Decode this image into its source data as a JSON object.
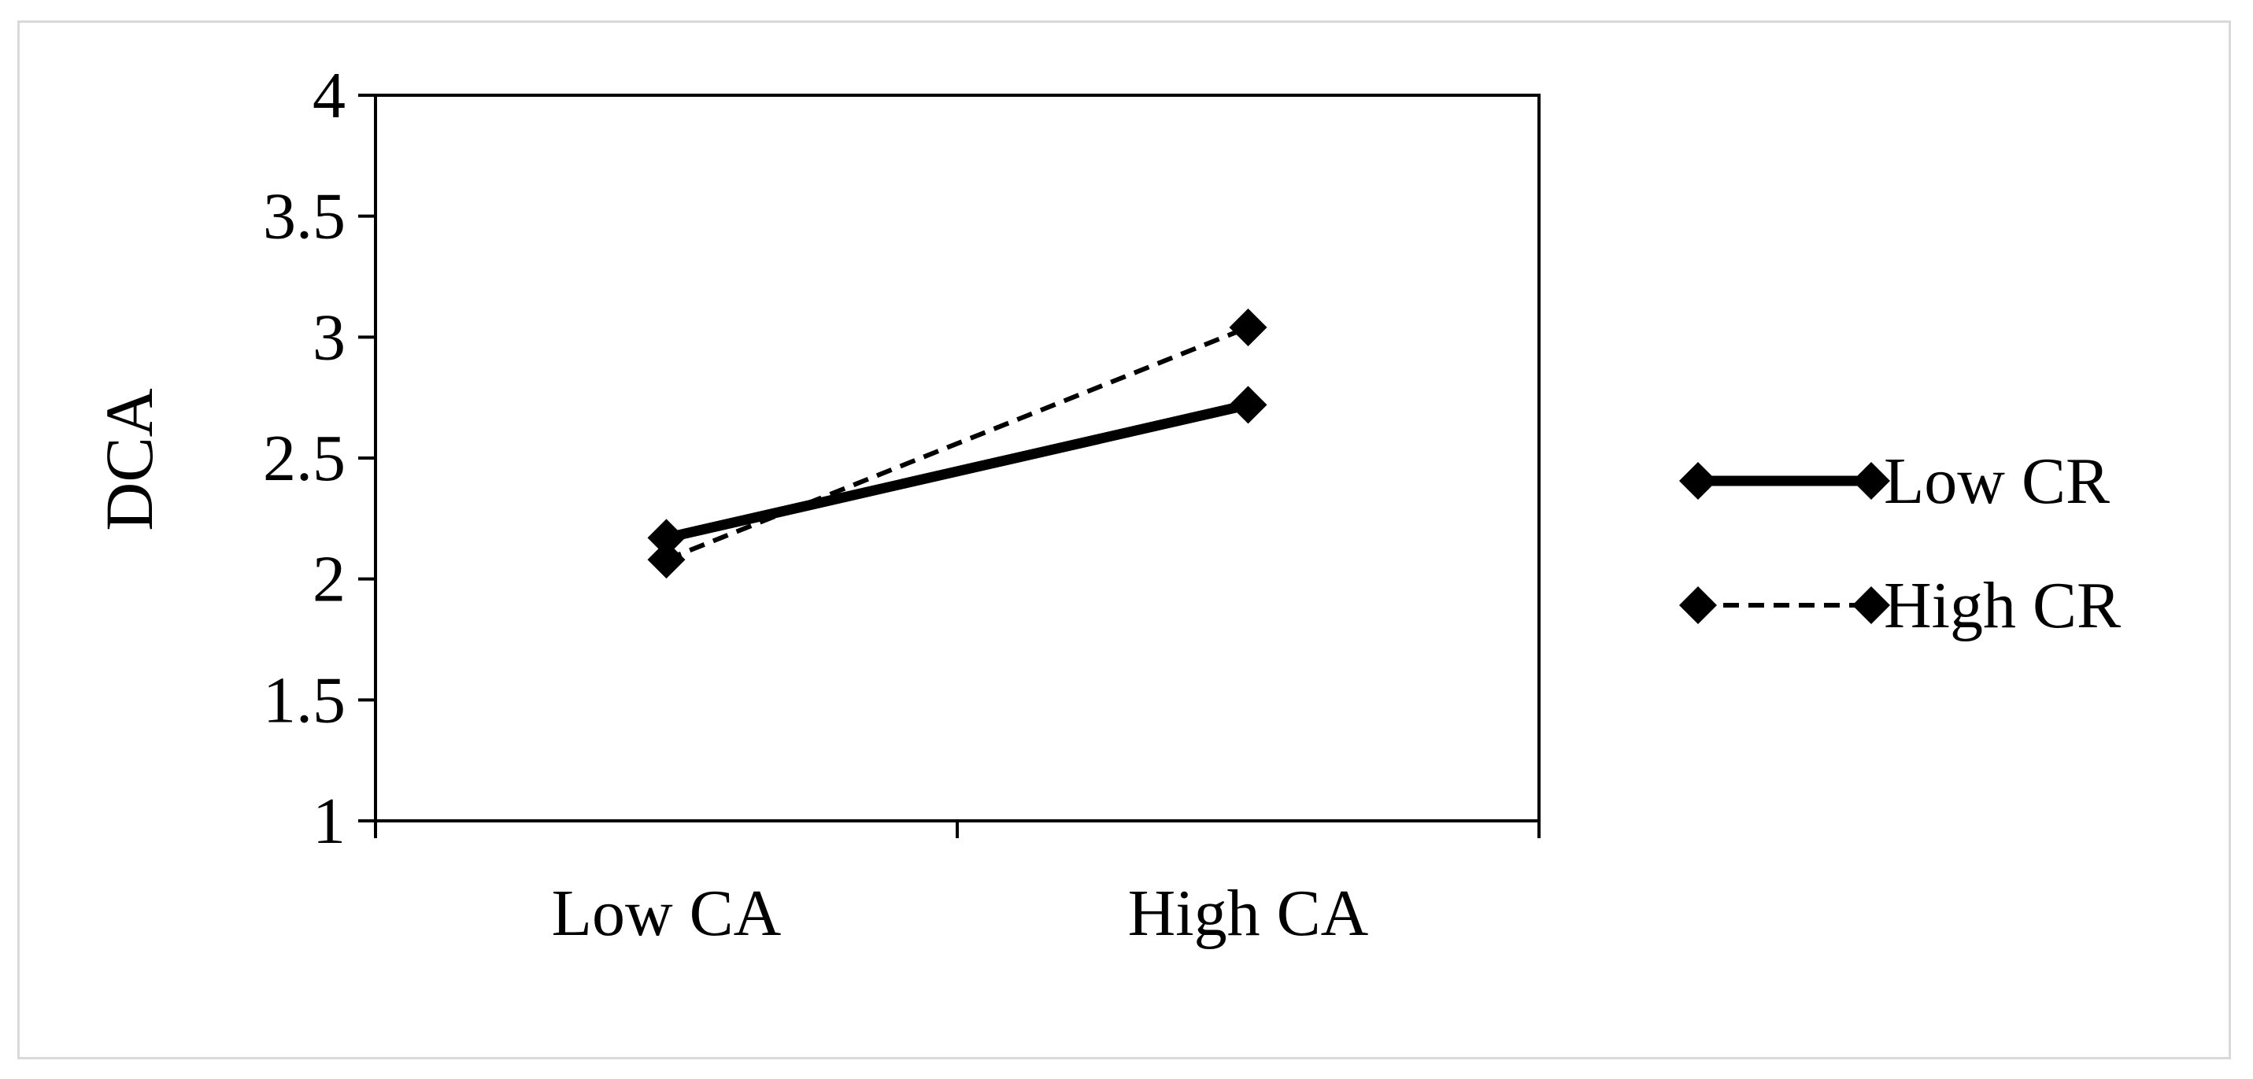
{
  "chart_data": {
    "type": "line",
    "title": "",
    "xlabel": "",
    "ylabel": "DCA",
    "categories": [
      "Low CA",
      "High CA"
    ],
    "series": [
      {
        "name": "Low CR",
        "values": [
          2.17,
          2.72
        ],
        "style": "solid",
        "marker": "diamond"
      },
      {
        "name": "High CR",
        "values": [
          2.08,
          3.04
        ],
        "style": "dashed",
        "marker": "diamond"
      }
    ],
    "ylim": [
      1,
      4
    ],
    "yticks": [
      "1",
      "1.5",
      "2",
      "2.5",
      "3",
      "3.5",
      "4"
    ],
    "grid": false,
    "legend_position": "right",
    "colors": {
      "line": "#000000",
      "frame_border": "#d9d9d9",
      "background": "#ffffff"
    }
  }
}
